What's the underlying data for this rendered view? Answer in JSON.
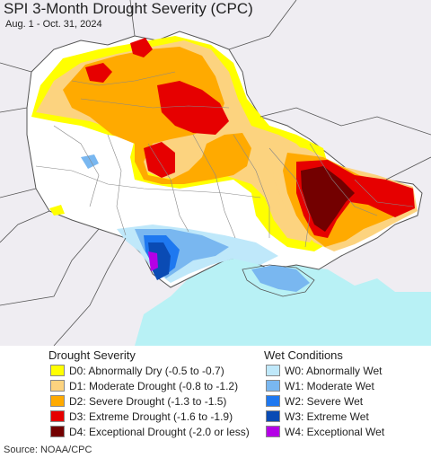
{
  "title": "SPI 3-Month Drought Severity (CPC)",
  "subtitle": "Aug. 1 - Oct. 31, 2024",
  "legend": {
    "drought_heading": "Drought Severity",
    "wet_heading": "Wet Conditions",
    "drought": [
      {
        "label": "D0: Abnormally Dry (-0.5 to -0.7)",
        "color": "#ffff00"
      },
      {
        "label": "D1: Moderate Drought (-0.8 to -1.2)",
        "color": "#fcd37f"
      },
      {
        "label": "D2: Severe Drought (-1.3 to -1.5)",
        "color": "#ffaa00"
      },
      {
        "label": "D3: Extreme Drought (-1.6 to -1.9)",
        "color": "#e60000"
      },
      {
        "label": "D4: Exceptional Drought (-2.0 or less)",
        "color": "#730000"
      }
    ],
    "wet": [
      {
        "label": "W0: Abnormally Wet",
        "color": "#bfe8fa"
      },
      {
        "label": "W1: Moderate Wet",
        "color": "#79b7f0"
      },
      {
        "label": "W2: Severe Wet",
        "color": "#1e78f0"
      },
      {
        "label": "W3: Extreme Wet",
        "color": "#0a4bb4"
      },
      {
        "label": "W4: Exceptional Wet",
        "color": "#b400e6"
      }
    ]
  },
  "map_colors": {
    "outside": "#efedf2",
    "sea": "#b8f1f5",
    "land": "#ffffff",
    "border": "#555555"
  },
  "source": "Source: NOAA/CPC"
}
